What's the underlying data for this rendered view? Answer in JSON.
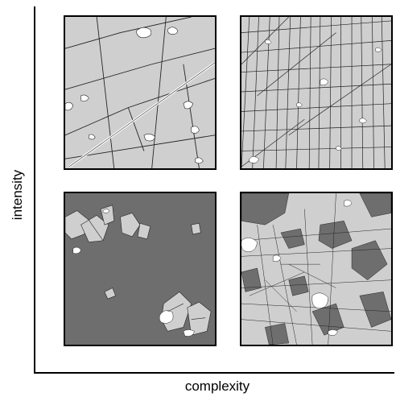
{
  "axes": {
    "ylabel": "intensity",
    "xlabel": "complexity"
  },
  "colors": {
    "light_fill": "#cfcfcf",
    "dark_fill": "#6e6e6e",
    "line": "#222222",
    "gap": "#ffffff"
  }
}
